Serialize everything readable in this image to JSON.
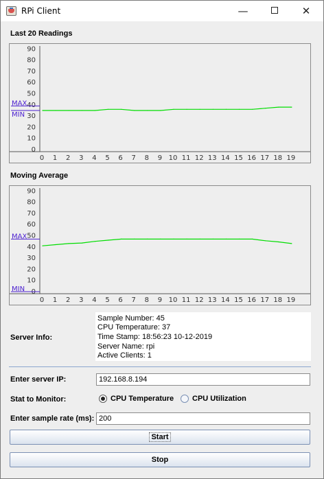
{
  "window": {
    "title": "RPi Client",
    "controls": {
      "minimize": "—",
      "maximize": "☐",
      "close": "✕"
    }
  },
  "charts": {
    "readings": {
      "title": "Last 20 Readings"
    },
    "average": {
      "title": "Moving Average"
    }
  },
  "chart_data": [
    {
      "type": "line",
      "title": "Last 20 Readings",
      "x": [
        0,
        1,
        2,
        3,
        4,
        5,
        6,
        7,
        8,
        9,
        10,
        11,
        12,
        13,
        14,
        15,
        16,
        17,
        18,
        19
      ],
      "series": [
        {
          "values": [
            35,
            35,
            35,
            35,
            35,
            36,
            36,
            35,
            35,
            35,
            36,
            36,
            36,
            36,
            36,
            36,
            36,
            37,
            38,
            38
          ],
          "color": "#00dd00"
        }
      ],
      "ylim": [
        0,
        90
      ],
      "yticks": [
        0,
        10,
        20,
        30,
        40,
        50,
        60,
        70,
        80,
        90
      ],
      "xticks": [
        0,
        1,
        2,
        3,
        4,
        5,
        6,
        7,
        8,
        9,
        10,
        11,
        12,
        13,
        14,
        15,
        16,
        17,
        18,
        19
      ],
      "markers": [
        {
          "label": "MAX",
          "value": 39,
          "color": "#4b1fd0"
        },
        {
          "label": "MIN",
          "value": 35,
          "color": "#4b1fd0"
        }
      ],
      "grid": false,
      "legend": "none"
    },
    {
      "type": "line",
      "title": "Moving Average",
      "x": [
        0,
        1,
        2,
        3,
        4,
        5,
        6,
        7,
        8,
        9,
        10,
        11,
        12,
        13,
        14,
        15,
        16,
        17,
        18,
        19
      ],
      "series": [
        {
          "values": [
            41,
            42,
            43,
            43.5,
            45,
            46,
            47,
            47,
            47,
            47,
            47,
            47,
            47,
            47,
            47,
            47,
            47,
            45.5,
            44.5,
            43
          ],
          "color": "#00dd00"
        }
      ],
      "ylim": [
        0,
        90
      ],
      "yticks": [
        0,
        10,
        20,
        30,
        40,
        50,
        60,
        70,
        80,
        90
      ],
      "xticks": [
        0,
        1,
        2,
        3,
        4,
        5,
        6,
        7,
        8,
        9,
        10,
        11,
        12,
        13,
        14,
        15,
        16,
        17,
        18,
        19
      ],
      "markers": [
        {
          "label": "MAX",
          "value": 47,
          "color": "#4b1fd0"
        },
        {
          "label": "MIN",
          "value": 0,
          "color": "#4b1fd0"
        }
      ],
      "grid": false,
      "legend": "none"
    }
  ],
  "server_info": {
    "label": "Server Info:",
    "lines": [
      "Sample Number: 45",
      "CPU Temperature: 37",
      "Time Stamp: 18:56:23 10-12-2019",
      "Server Name: rpi",
      "Active Clients: 1"
    ]
  },
  "form": {
    "server_ip": {
      "label": "Enter server IP:",
      "value": "192.168.8.194"
    },
    "stat": {
      "label": "Stat to Monitor:",
      "options": [
        {
          "label": "CPU Temperature",
          "selected": true
        },
        {
          "label": "CPU Utilization",
          "selected": false
        }
      ]
    },
    "sample_rate": {
      "label": "Enter sample rate (ms):",
      "value": "200"
    }
  },
  "buttons": {
    "start": "Start",
    "stop": "Stop"
  }
}
